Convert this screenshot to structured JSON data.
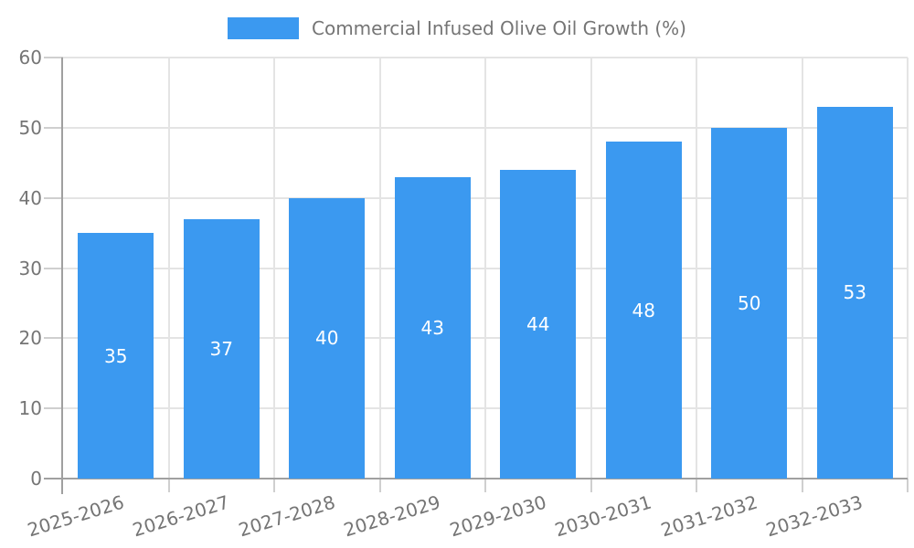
{
  "legend": {
    "label": "Commercial Infused Olive Oil Growth (%)",
    "swatch_color": "#3B99F0"
  },
  "chart_data": {
    "type": "bar",
    "title": "Commercial Infused Olive Oil Growth (%)",
    "categories": [
      "2025-2026",
      "2026-2027",
      "2027-2028",
      "2028-2029",
      "2029-2030",
      "2030-2031",
      "2031-2032",
      "2032-2033"
    ],
    "values": [
      35,
      37,
      40,
      43,
      44,
      48,
      50,
      53
    ],
    "xlabel": "",
    "ylabel": "",
    "ylim": [
      0,
      60
    ],
    "yticks": [
      0,
      10,
      20,
      30,
      40,
      50,
      60
    ],
    "grid": true,
    "legend_position": "top",
    "bar_color": "#3B99F0",
    "value_label_color": "#FFFFFF",
    "axis_text_color": "#757575",
    "gridline_color": "#E4E4E4",
    "axis_line_color": "#A0A0A0",
    "tick_color": "#CFCFCF"
  }
}
